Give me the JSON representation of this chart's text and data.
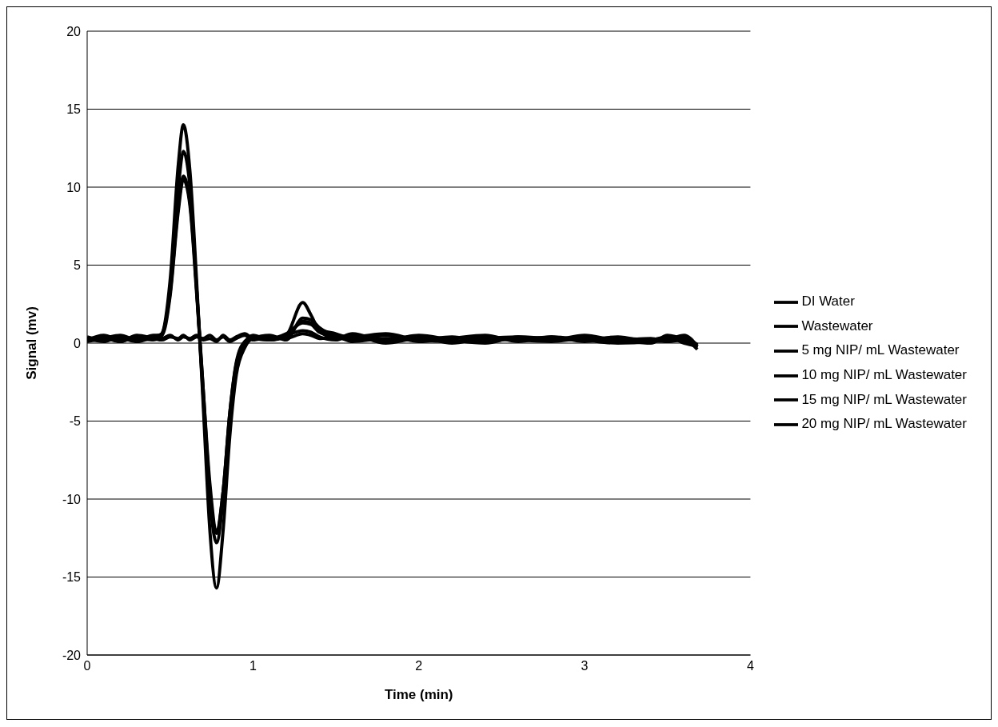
{
  "chart_data": {
    "type": "line",
    "xlabel": "Time (min)",
    "ylabel": "Signal (mv)",
    "x": [
      0,
      0.1,
      0.2,
      0.3,
      0.4,
      0.45,
      0.5,
      0.55,
      0.58,
      0.62,
      0.66,
      0.7,
      0.74,
      0.78,
      0.82,
      0.86,
      0.9,
      0.95,
      1.0,
      1.1,
      1.2,
      1.3,
      1.35,
      1.4,
      1.5,
      1.6,
      1.8,
      2.0,
      2.2,
      2.4,
      2.6,
      2.8,
      3.0,
      3.2,
      3.4,
      3.5,
      3.6,
      3.68
    ],
    "series": [
      {
        "name": "DI Water",
        "color": "#000000",
        "values": [
          0.2,
          0.4,
          0.1,
          0.5,
          0.3,
          0.2,
          0.4,
          0.3,
          0.5,
          0.2,
          0.4,
          0.3,
          0.5,
          0.2,
          0.4,
          0.1,
          0.3,
          0.5,
          0.2,
          0.4,
          0.3,
          0.6,
          0.5,
          0.3,
          0.4,
          0.1,
          0.3,
          0.2,
          0.4,
          0.1,
          0.3,
          0.2,
          0.4,
          0.1,
          0.2,
          0.4,
          0.0,
          -0.2
        ]
      },
      {
        "name": "Wastewater",
        "color": "#000000",
        "values": [
          0.1,
          0.3,
          0.5,
          0.2,
          0.4,
          0.3,
          0.5,
          0.2,
          0.4,
          0.3,
          0.5,
          0.2,
          0.3,
          0.1,
          0.5,
          0.2,
          0.4,
          0.6,
          0.3,
          0.2,
          0.5,
          0.8,
          0.7,
          0.4,
          0.2,
          0.5,
          0.0,
          0.3,
          0.1,
          0.4,
          0.2,
          0.1,
          0.3,
          0.2,
          0.0,
          0.5,
          0.2,
          -0.3
        ]
      },
      {
        "name": "5 mg NIP/ mL Wastewater",
        "color": "#000000",
        "values": [
          0.3,
          0.1,
          0.4,
          0.2,
          0.5,
          0.5,
          3,
          8.5,
          10.5,
          8.8,
          3.2,
          -3,
          -9,
          -12,
          -9.5,
          -4.5,
          -1.2,
          0.1,
          0.4,
          0.3,
          0.6,
          1.3,
          1.2,
          0.7,
          0.4,
          0.2,
          0.5,
          0.1,
          0.3,
          0.5,
          0.1,
          0.4,
          0.1,
          0.3,
          0.2,
          0.1,
          0.3,
          -0.1
        ]
      },
      {
        "name": "10 mg NIP/ mL Wastewater",
        "color": "#000000",
        "values": [
          0.4,
          0.2,
          0.3,
          0.1,
          0.4,
          0.6,
          3.2,
          8.8,
          10.7,
          9,
          3.5,
          -3,
          -9.5,
          -12.2,
          -9.5,
          -4.5,
          -1.3,
          0,
          0.5,
          0.2,
          0.4,
          1.4,
          1.3,
          0.9,
          0.6,
          0.3,
          0.2,
          0.5,
          0.2,
          0,
          0.4,
          0.3,
          0.2,
          0.4,
          0.1,
          0.2,
          0.5,
          -0.2
        ]
      },
      {
        "name": "15 mg NIP/ mL Wastewater",
        "color": "#000000",
        "values": [
          0.2,
          0.5,
          0.2,
          0.3,
          0.2,
          0.5,
          3.5,
          10,
          12.3,
          10,
          3.5,
          -3.5,
          -10,
          -12.8,
          -10,
          -5,
          -1.5,
          -0.2,
          0.3,
          0.5,
          0.2,
          1.6,
          1.5,
          1,
          0.5,
          0.4,
          0.6,
          0.2,
          0.1,
          0.3,
          0.4,
          0.2,
          0.5,
          0.2,
          0.3,
          0.1,
          0.2,
          -0.4
        ]
      },
      {
        "name": "20 mg NIP/ mL Wastewater",
        "color": "#000000",
        "values": [
          0.2,
          0.3,
          0.1,
          0.4,
          0.3,
          0.6,
          4,
          11.5,
          14,
          11,
          4,
          -4,
          -12,
          -15.7,
          -12,
          -6,
          -2,
          -0.3,
          0.3,
          0.2,
          0.5,
          2.6,
          1.8,
          0.8,
          0.3,
          0.6,
          0.1,
          0.4,
          0,
          0.3,
          0.2,
          0.4,
          0.2,
          0,
          0.1,
          0.3,
          0.4,
          -0.2
        ]
      }
    ],
    "xlim": [
      0,
      4
    ],
    "xticks": [
      0,
      1,
      2,
      3,
      4
    ],
    "ylim": [
      -20,
      20
    ],
    "yticks": [
      -20,
      -15,
      -10,
      -5,
      0,
      5,
      10,
      15,
      20
    ],
    "grid": "y",
    "legend": "right",
    "marker": "none",
    "line_style": "solid"
  }
}
